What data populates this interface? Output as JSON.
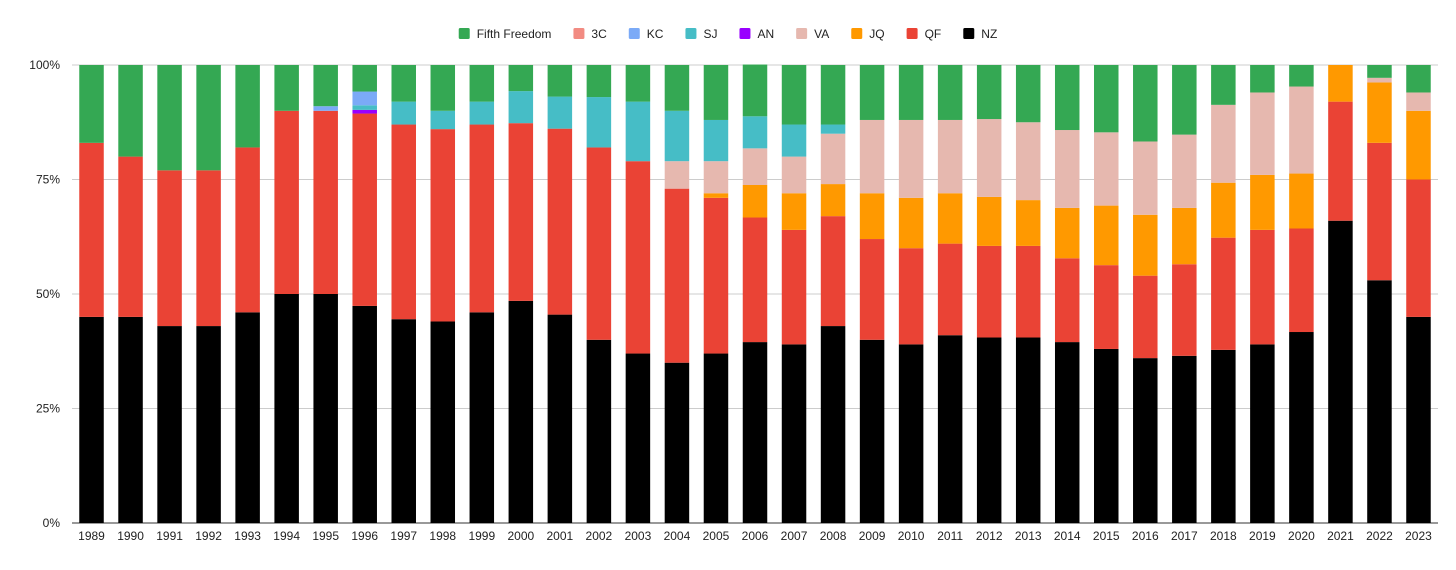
{
  "chart_data": {
    "type": "bar",
    "stacked": true,
    "normalized": true,
    "title": "",
    "xlabel": "",
    "ylabel": "",
    "ylim": [
      0,
      100
    ],
    "yticks": [
      "0%",
      "25%",
      "50%",
      "75%",
      "100%"
    ],
    "ytick_values": [
      0,
      25,
      50,
      75,
      100
    ],
    "grid": true,
    "legend_position": "top-center",
    "categories": [
      "1989",
      "1990",
      "1991",
      "1992",
      "1993",
      "1994",
      "1995",
      "1996",
      "1997",
      "1998",
      "1999",
      "2000",
      "2001",
      "2002",
      "2003",
      "2004",
      "2005",
      "2006",
      "2007",
      "2008",
      "2009",
      "2010",
      "2011",
      "2012",
      "2013",
      "2014",
      "2015",
      "2016",
      "2017",
      "2018",
      "2019",
      "2020",
      "2021",
      "2022",
      "2023"
    ],
    "series": [
      {
        "name": "NZ",
        "color": "#000000",
        "values": [
          45,
          45,
          43,
          43,
          46,
          50,
          50,
          47.4,
          44.5,
          44,
          46,
          48.5,
          45.5,
          40,
          37,
          35,
          37,
          39.5,
          39,
          43,
          40,
          39,
          41,
          40.5,
          40.5,
          39.5,
          38,
          36,
          36.5,
          37.8,
          39,
          41.7,
          66,
          53,
          45
        ]
      },
      {
        "name": "QF",
        "color": "#ea4335",
        "values": [
          38,
          35,
          34,
          34,
          36,
          40,
          40,
          42,
          42.5,
          42,
          41,
          38.8,
          40.6,
          42,
          42,
          38,
          34,
          27.2,
          25,
          24,
          22,
          21,
          20,
          20,
          20,
          18.3,
          18.3,
          18,
          20,
          24.5,
          25,
          22.6,
          26,
          30,
          30
        ]
      },
      {
        "name": "JQ",
        "color": "#ff9900",
        "values": [
          0,
          0,
          0,
          0,
          0,
          0,
          0,
          0,
          0,
          0,
          0,
          0,
          0,
          0,
          0,
          0,
          1,
          7.1,
          8,
          7,
          10,
          11,
          11,
          10.7,
          10,
          11,
          13,
          13.3,
          12.3,
          12,
          12,
          12,
          8,
          13.2,
          15
        ]
      },
      {
        "name": "VA",
        "color": "#e6b8af",
        "values": [
          0,
          0,
          0,
          0,
          0,
          0,
          0,
          0,
          0,
          0,
          0,
          0,
          0,
          0,
          0,
          6,
          7,
          8,
          8,
          11,
          16,
          17,
          16,
          17,
          17,
          17,
          16,
          16,
          16,
          17,
          18,
          19,
          0,
          1,
          4
        ]
      },
      {
        "name": "AN",
        "color": "#9900ff",
        "values": [
          0,
          0,
          0,
          0,
          0,
          0,
          0,
          0.8,
          0,
          0,
          0,
          0,
          0,
          0,
          0,
          0,
          0,
          0,
          0,
          0,
          0,
          0,
          0,
          0,
          0,
          0,
          0,
          0,
          0,
          0,
          0,
          0,
          0,
          0,
          0
        ]
      },
      {
        "name": "SJ",
        "color": "#46bdc6",
        "values": [
          0,
          0,
          0,
          0,
          0,
          0,
          0,
          1,
          5,
          4,
          5,
          7,
          7,
          11,
          13,
          11,
          9,
          7,
          7,
          2,
          0,
          0,
          0,
          0,
          0,
          0,
          0,
          0,
          0,
          0,
          0,
          0,
          0,
          0,
          0
        ]
      },
      {
        "name": "KC",
        "color": "#7baaf7",
        "values": [
          0,
          0,
          0,
          0,
          0,
          0,
          1,
          3,
          0,
          0,
          0,
          0,
          0,
          0,
          0,
          0,
          0,
          0,
          0,
          0,
          0,
          0,
          0,
          0,
          0,
          0,
          0,
          0,
          0,
          0,
          0,
          0,
          0,
          0,
          0
        ]
      },
      {
        "name": "3C",
        "color": "#f28b82",
        "values": [
          0,
          0,
          0,
          0,
          0,
          0,
          0,
          0,
          0,
          0,
          0,
          0,
          0,
          0,
          0,
          0,
          0,
          0,
          0,
          0,
          0,
          0,
          0,
          0,
          0,
          0,
          0,
          0,
          0,
          0,
          0,
          0,
          0,
          0,
          0
        ]
      },
      {
        "name": "Fifth Freedom",
        "color": "#34a853",
        "values": [
          17,
          20,
          23,
          23,
          18,
          10,
          9,
          5.8,
          8,
          10,
          8,
          5.7,
          6.9,
          7,
          8,
          10,
          12,
          11.3,
          13,
          13,
          12,
          12,
          12,
          11.8,
          12.5,
          14.2,
          14.7,
          16.7,
          15.2,
          8.7,
          6,
          4.7,
          0,
          2.8,
          6
        ]
      }
    ]
  }
}
